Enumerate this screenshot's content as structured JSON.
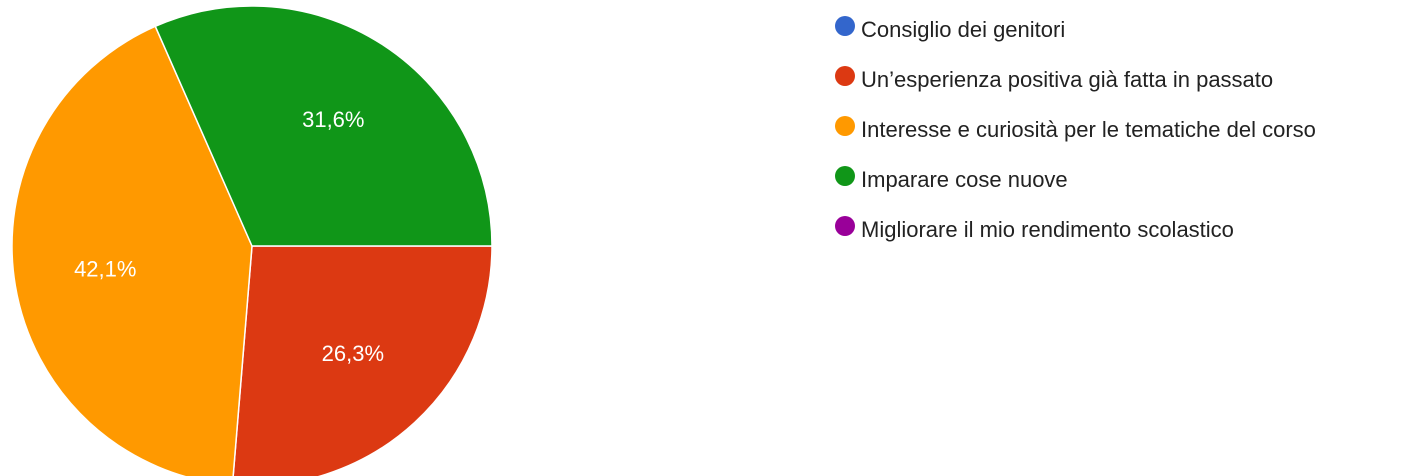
{
  "chart_data": {
    "type": "pie",
    "categories": [
      "Consiglio dei genitori",
      "Un’esperienza positiva già fatta in passato",
      "Interesse e curiosità per le tematiche del corso",
      "Imparare cose nuove",
      "Migliorare il mio rendimento scolastico"
    ],
    "values": [
      0,
      26.3,
      42.1,
      31.6,
      0
    ],
    "value_labels": [
      null,
      "26,3%",
      "42,1%",
      "31,6%",
      null
    ],
    "colors": [
      "#3366cc",
      "#dc3912",
      "#ff9900",
      "#109618",
      "#990099"
    ]
  }
}
